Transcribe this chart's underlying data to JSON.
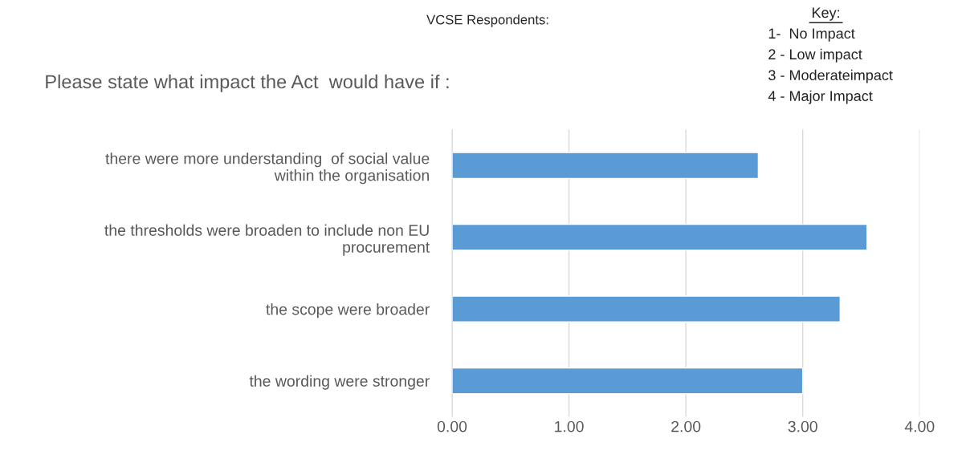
{
  "chart_data": {
    "type": "bar",
    "orientation": "horizontal",
    "title": "Please state what impact the Act  would have if :",
    "subtitle": "VCSE Respondents:",
    "annotations": [
      "Key:",
      "1-  No Impact",
      "2 - Low impact",
      "3 - Moderateimpact",
      "4 - Major Impact"
    ],
    "categories": [
      "there were more understanding  of social value\nwithin the organisation",
      "the thresholds were broaden to include non EU\nprocurement",
      "the scope were broader",
      "the wording were stronger"
    ],
    "values": [
      2.62,
      3.55,
      3.32,
      3.0
    ],
    "color": "#5b9bd5",
    "xlim": [
      0,
      4
    ],
    "xticks": [
      {
        "value": 0,
        "label": "0.00"
      },
      {
        "value": 1,
        "label": "1.00"
      },
      {
        "value": 2,
        "label": "2.00"
      },
      {
        "value": 3,
        "label": "3.00"
      },
      {
        "value": 4,
        "label": "4.00"
      }
    ],
    "grid": "x",
    "legend": false
  }
}
